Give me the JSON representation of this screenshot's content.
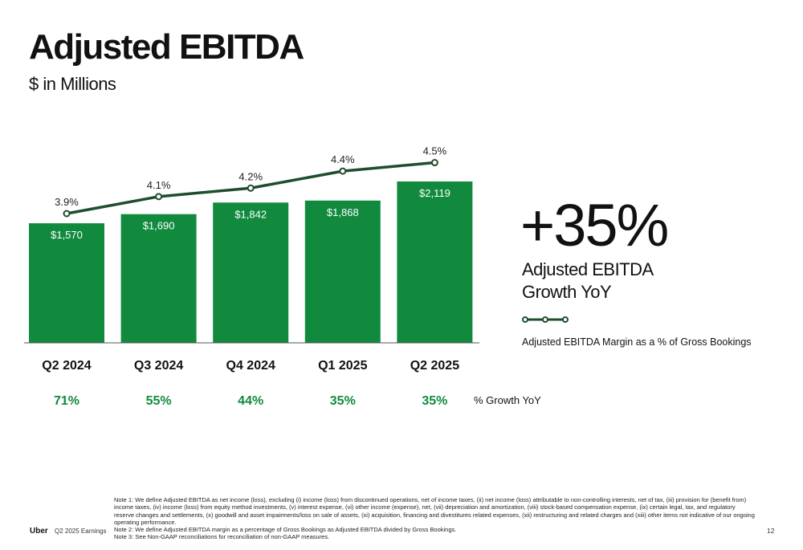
{
  "header": {
    "title": "Adjusted EBITDA",
    "subtitle": "$ in Millions"
  },
  "chart_data": {
    "type": "bar",
    "categories": [
      "Q2 2024",
      "Q3 2024",
      "Q4 2024",
      "Q1 2025",
      "Q2 2025"
    ],
    "values": [
      1570,
      1690,
      1842,
      1868,
      2119
    ],
    "value_labels": [
      "$1,570",
      "$1,690",
      "$1,842",
      "$1,868",
      "$2,119"
    ],
    "margin_line": {
      "name": "Adjusted EBITDA Margin as a % of Gross Bookings",
      "values": [
        3.9,
        4.1,
        4.2,
        4.4,
        4.5
      ],
      "labels": [
        "3.9%",
        "4.1%",
        "4.2%",
        "4.4%",
        "4.5%"
      ]
    },
    "growth_yoy": [
      "71%",
      "55%",
      "44%",
      "35%",
      "35%"
    ],
    "growth_label": "% Growth YoY",
    "ylim": [
      0,
      2119
    ]
  },
  "highlight": {
    "value": "+35%",
    "label": "Adjusted EBITDA Growth YoY"
  },
  "legend": {
    "line_label": "Adjusted EBITDA Margin as a % of Gross Bookings"
  },
  "notes": {
    "note1": "Note 1: We define Adjusted EBITDA as net income (loss), excluding (i) income (loss) from discontinued operations, net of income taxes, (ii) net income (loss) attributable to non-controlling interests, net of tax, (iii) provision for (benefit from) income taxes, (iv) income (loss) from equity method investments, (v) interest expense, (vi) other income (expense), net, (vii) depreciation and amortization, (viii) stock-based compensation expense, (ix) certain legal, tax, and regulatory reserve changes and settlements, (x) goodwill and asset impairments/loss on sale of assets, (xi) acquisition, financing and divestitures related expenses, (xii) restructuring and related charges and (xiii) other items not indicative of our ongoing operating performance.",
    "note2": "Note 2: We define Adjusted EBITDA margin as a percentage of Gross Bookings as Adjusted EBITDA divided by Gross Bookings.",
    "note3": "Note 3: See Non-GAAP reconciliations for reconciliation of non-GAAP measures."
  },
  "footer": {
    "brand": "Uber",
    "event": "Q2 2025 Earnings",
    "page": "12"
  },
  "colors": {
    "bar": "#118a3e",
    "line": "#1f4d2e",
    "growth": "#118a3e"
  }
}
